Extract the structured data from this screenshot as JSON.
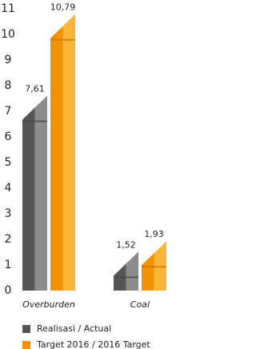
{
  "chart_data": {
    "type": "bar",
    "categories": [
      "Overburden",
      "Coal"
    ],
    "series": [
      {
        "name": "Realisasi / Actual",
        "color": "#555555",
        "highlight_color": "#8c8c8c",
        "values": [
          7.61,
          1.52
        ],
        "value_labels": [
          "7,61",
          "1,52"
        ]
      },
      {
        "name": "Target 2016 / 2016 Target",
        "color": "#f39200",
        "highlight_color": "#fbb63a",
        "values": [
          10.79,
          1.93
        ],
        "value_labels": [
          "10,79",
          "1,93"
        ]
      }
    ],
    "ylim": [
      0,
      11
    ],
    "yticks": [
      0,
      1,
      2,
      3,
      4,
      5,
      6,
      7,
      8,
      9,
      10,
      11
    ],
    "grid": false
  }
}
